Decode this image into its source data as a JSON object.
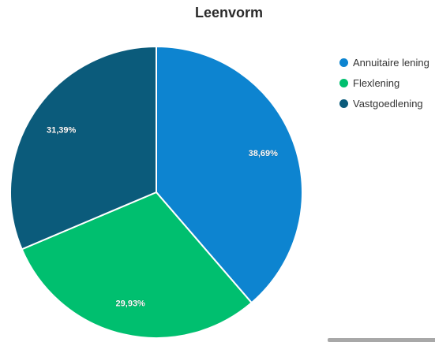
{
  "chart_data": {
    "type": "pie",
    "title": "Leenvorm",
    "series": [
      {
        "name": "Annuitaire lening",
        "value": 38.69,
        "label": "38,69%",
        "color": "#0d84d0"
      },
      {
        "name": "Flexlening",
        "value": 29.93,
        "label": "29,93%",
        "color": "#00bf6f"
      },
      {
        "name": "Vastgoedlening",
        "value": 31.39,
        "label": "31,39%",
        "color": "#0b5b7b"
      }
    ],
    "legend_position": "top-right"
  }
}
